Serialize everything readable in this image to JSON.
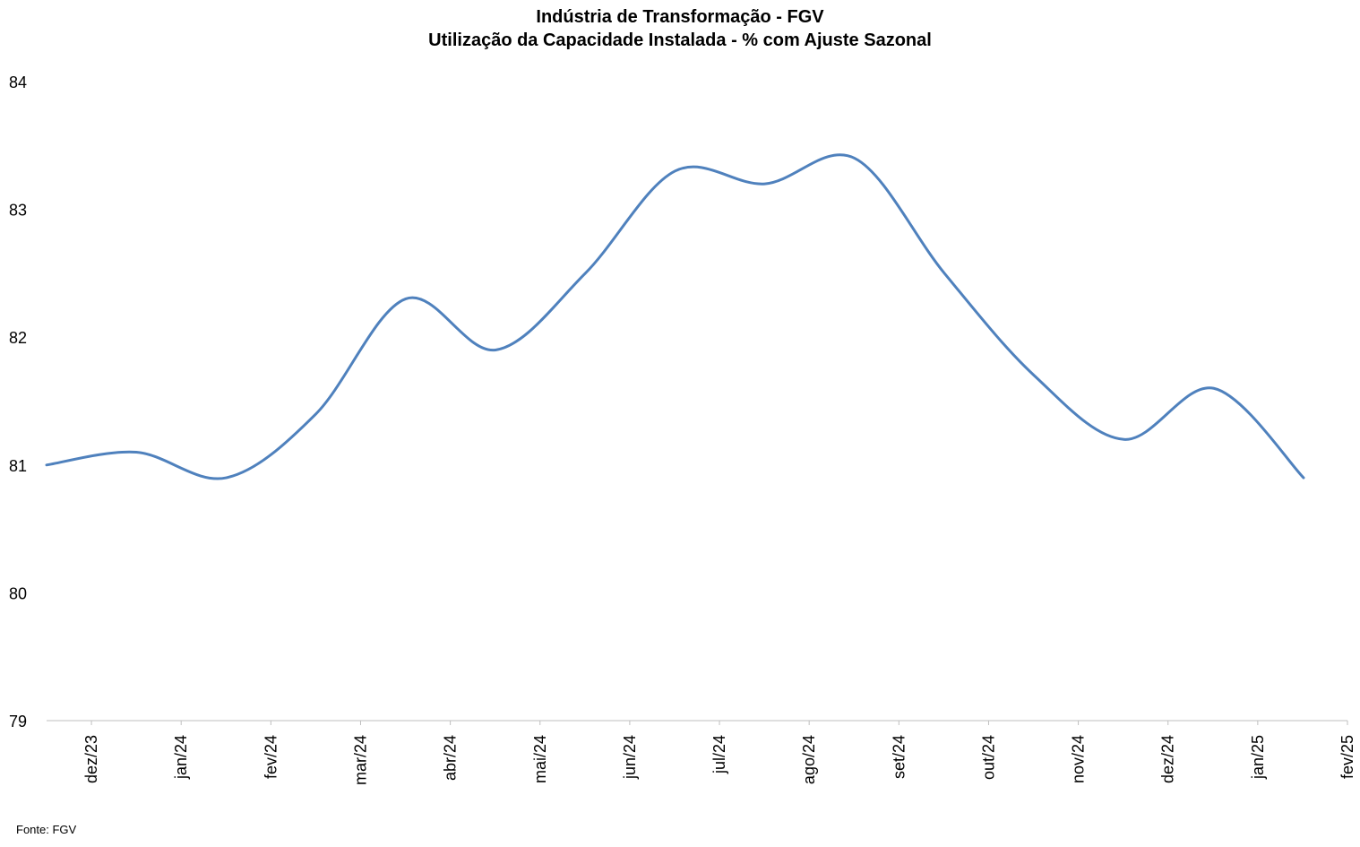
{
  "chart_data": {
    "type": "line",
    "title": "Indústria de Transformação - FGV",
    "subtitle": "Utilização da Capacidade Instalada - % com Ajuste Sazonal",
    "xlabel": "",
    "ylabel": "",
    "categories": [
      "dez/23",
      "jan/24",
      "fev/24",
      "mar/24",
      "abr/24",
      "mai/24",
      "jun/24",
      "jul/24",
      "ago/24",
      "set/24",
      "out/24",
      "nov/24",
      "dez/24",
      "jan/25",
      "fev/25"
    ],
    "series": [
      {
        "values": [
          81.0,
          81.1,
          80.9,
          81.4,
          82.3,
          81.9,
          82.5,
          83.3,
          83.2,
          83.4,
          82.5,
          81.7,
          81.2,
          81.6,
          80.9
        ]
      }
    ],
    "ylim": [
      79,
      84
    ],
    "yticks": [
      79,
      80,
      81,
      82,
      83,
      84
    ],
    "grid": false,
    "legend": "none",
    "line_color": "#4F81BD",
    "axis_color": "#BFBFBF",
    "source": "Fonte: FGV"
  }
}
